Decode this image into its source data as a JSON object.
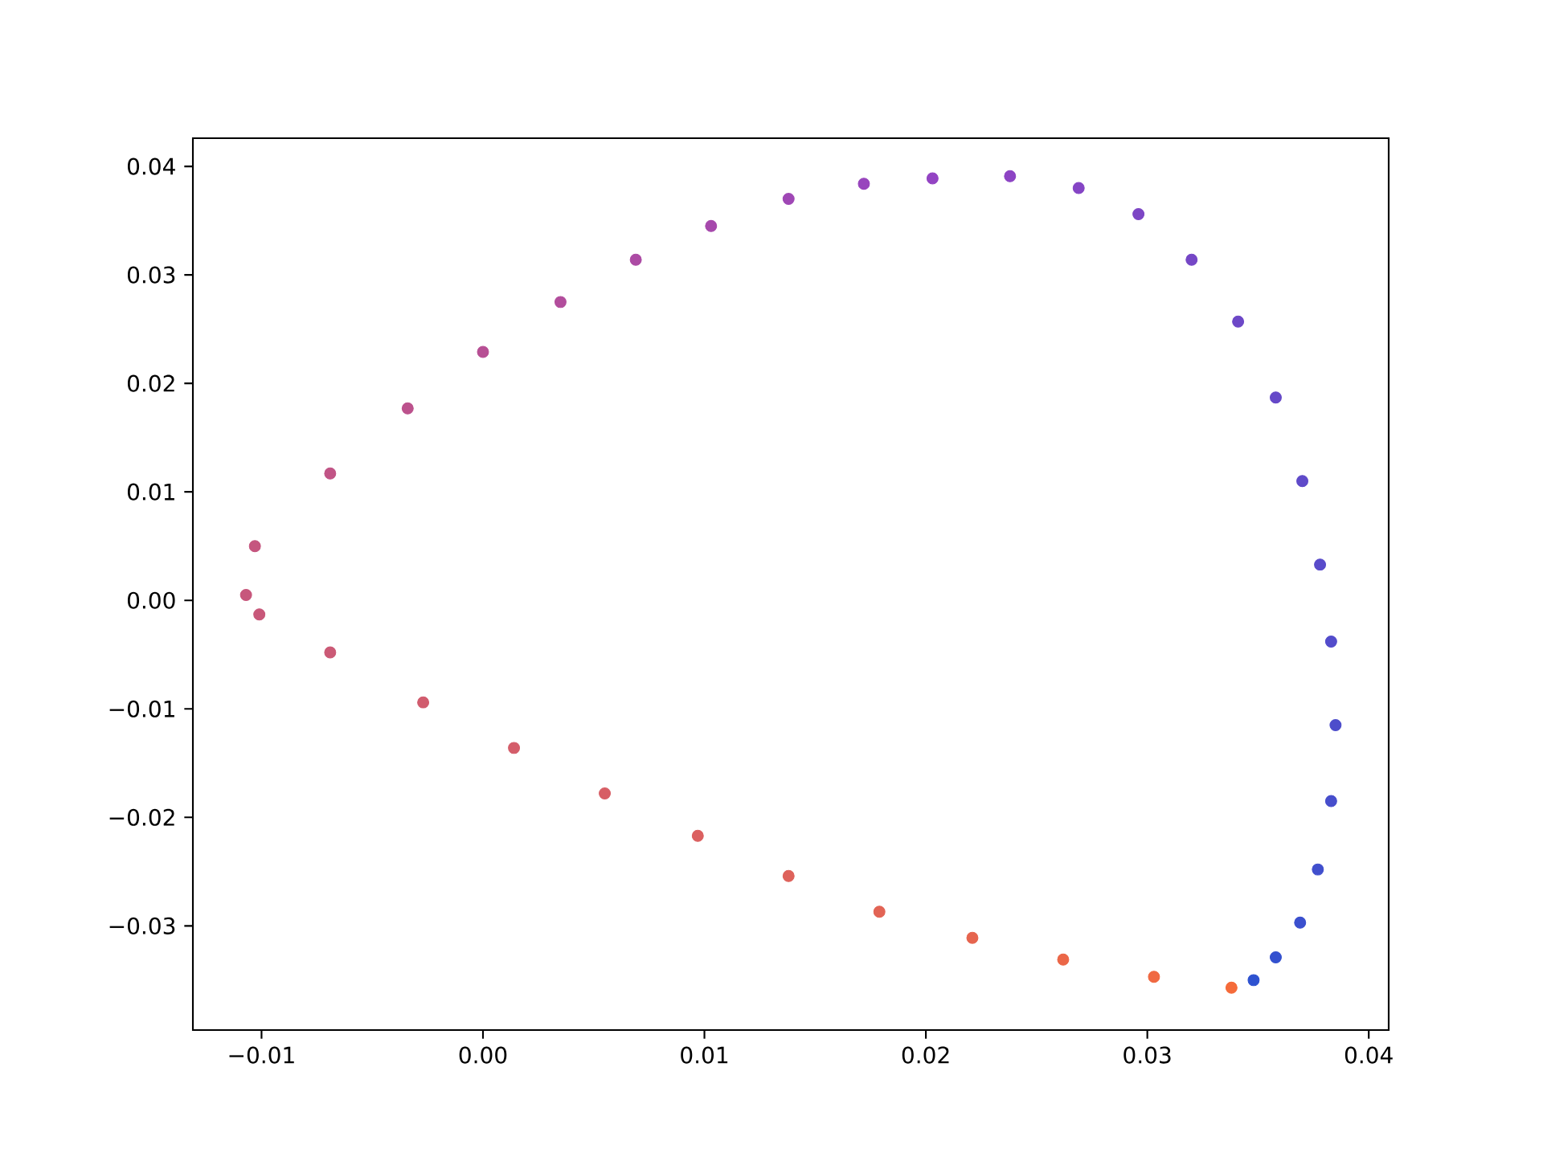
{
  "chart_data": {
    "type": "scatter",
    "xlim": [
      -0.0131,
      0.0409
    ],
    "ylim": [
      -0.0396,
      0.0426
    ],
    "xticks": [
      {
        "value": -0.01,
        "label": "−0.01"
      },
      {
        "value": 0.0,
        "label": "0.00"
      },
      {
        "value": 0.01,
        "label": "0.01"
      },
      {
        "value": 0.02,
        "label": "0.02"
      },
      {
        "value": 0.03,
        "label": "0.03"
      },
      {
        "value": 0.04,
        "label": "0.04"
      }
    ],
    "yticks": [
      {
        "value": -0.03,
        "label": "−0.03"
      },
      {
        "value": -0.02,
        "label": "−0.02"
      },
      {
        "value": -0.01,
        "label": "−0.01"
      },
      {
        "value": 0.0,
        "label": "0.00"
      },
      {
        "value": 0.01,
        "label": "0.01"
      },
      {
        "value": 0.02,
        "label": "0.02"
      },
      {
        "value": 0.03,
        "label": "0.03"
      },
      {
        "value": 0.04,
        "label": "0.04"
      }
    ],
    "x": [
      0.0348,
      0.0358,
      0.0369,
      0.0377,
      0.0383,
      0.0385,
      0.0383,
      0.0378,
      0.037,
      0.0358,
      0.0341,
      0.032,
      0.0296,
      0.0269,
      0.0238,
      0.0203,
      0.0172,
      0.0138,
      0.0103,
      0.0069,
      0.0035,
      0.0,
      -0.0034,
      -0.0069,
      -0.0103,
      -0.0107,
      -0.0101,
      -0.0069,
      -0.0027,
      0.0014,
      0.0055,
      0.0097,
      0.0138,
      0.0179,
      0.0221,
      0.0262,
      0.0303,
      0.0338
    ],
    "values": [
      -0.035,
      -0.0329,
      -0.0297,
      -0.0248,
      -0.0185,
      -0.0115,
      -0.0038,
      0.0033,
      0.011,
      0.0187,
      0.0257,
      0.0314,
      0.0356,
      0.038,
      0.0391,
      0.0389,
      0.0384,
      0.037,
      0.0345,
      0.0314,
      0.0275,
      0.0229,
      0.0177,
      0.0117,
      0.005,
      0.0005,
      -0.0013,
      -0.0048,
      -0.0094,
      -0.0136,
      -0.0178,
      -0.0217,
      -0.0254,
      -0.0287,
      -0.0311,
      -0.0331,
      -0.0347,
      -0.0357
    ],
    "colors": [
      "#2e52d0",
      "#3451cf",
      "#3b50ce",
      "#414fcd",
      "#474ecc",
      "#4d4dcb",
      "#534ccb",
      "#594bca",
      "#5f4ac9",
      "#6649c8",
      "#6d48c7",
      "#7547c6",
      "#7d46c5",
      "#8545c5",
      "#8d44c4",
      "#9344c3",
      "#9845bd",
      "#9f47b5",
      "#a649ac",
      "#ac4ba4",
      "#b24d9c",
      "#b74f94",
      "#bc528d",
      "#c15486",
      "#c5567f",
      "#c7577c",
      "#c8587a",
      "#cb5a76",
      "#d15c6e",
      "#d45d6a",
      "#d75e65",
      "#db6060",
      "#de625b",
      "#e26455",
      "#e6654f",
      "#eb6748",
      "#f06942",
      "#f56b3a"
    ]
  }
}
